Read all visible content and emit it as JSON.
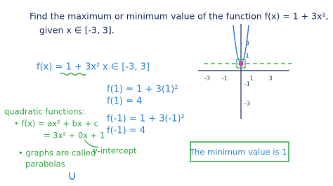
{
  "header": {
    "line1": "Find the maximum or minimum value of the function f(x) = 1 + 3x²,",
    "line2": "given x ∈ [-3, 3]."
  },
  "work": {
    "function": "f(x) = 1 + 3x²",
    "domain": "x ∈ [-3, 3]",
    "steps": [
      "f(1) = 1 + 3(1)²",
      "f(1) = 4",
      "f(-1) = 1 + 3(-1)²",
      "f(-1) = 4"
    ]
  },
  "notes": {
    "heading": "quadratic functions:",
    "general": "• f(x) = ax² + bx + c",
    "specific": "= 3x² + 0x + 1",
    "y_intercept": "y-intercept",
    "graphs": "• graphs are called",
    "parabolas": "parabolas",
    "shape": "∪"
  },
  "graph": {
    "x_labels": [
      "-3",
      "-1",
      "1",
      "3"
    ],
    "y_labels": [
      "3",
      "1",
      "-1",
      "-3"
    ]
  },
  "answer": "The minimum value is 1."
}
